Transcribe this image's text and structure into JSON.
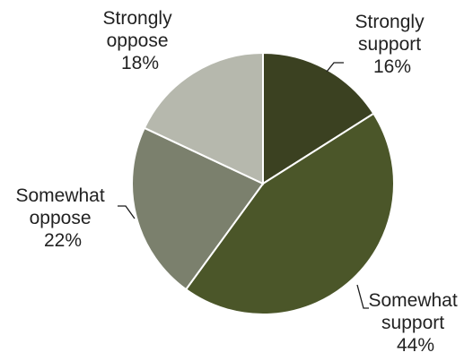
{
  "chart_data": {
    "type": "pie",
    "slices": [
      {
        "label": "Strongly support",
        "label_lines": [
          "Strongly",
          "support",
          "16%"
        ],
        "value": 16,
        "color": "#3b4121"
      },
      {
        "label": "Somewhat support",
        "label_lines": [
          "Somewhat",
          "support",
          "44%"
        ],
        "value": 44,
        "color": "#4b5629"
      },
      {
        "label": "Somewhat oppose",
        "label_lines": [
          "Somewhat",
          "oppose",
          "22%"
        ],
        "value": 22,
        "color": "#7b806d"
      },
      {
        "label": "Strongly oppose",
        "label_lines": [
          "Strongly",
          "oppose",
          "18%"
        ],
        "value": 18,
        "color": "#b6b8ad"
      }
    ]
  }
}
